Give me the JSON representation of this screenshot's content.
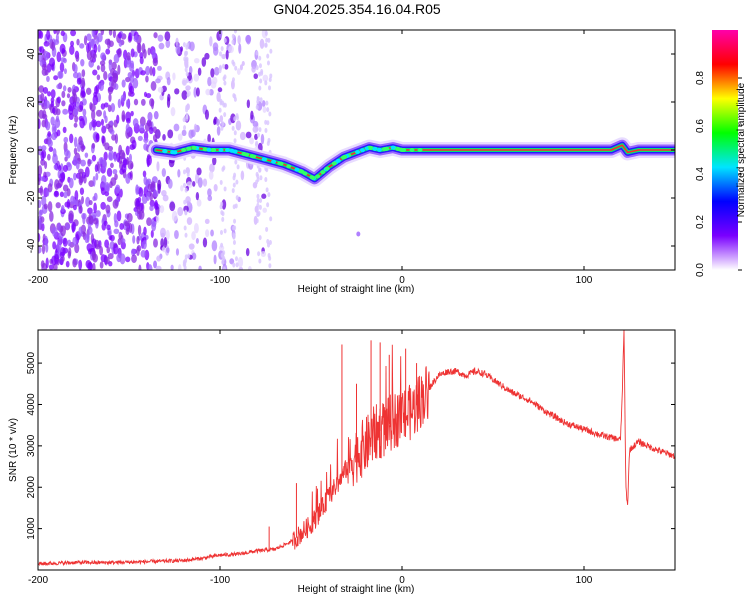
{
  "title": "GN04.2025.354.16.04.R05",
  "chart_data": [
    {
      "type": "heatmap",
      "xlabel": "Height of straight line (km)",
      "ylabel": "Frequency (Hz)",
      "xlim": [
        -200,
        150
      ],
      "ylim": [
        -50,
        50
      ],
      "xticks": [
        -200,
        -100,
        0,
        100
      ],
      "yticks": [
        -40,
        -20,
        0,
        20,
        40
      ],
      "colorbar": {
        "label": "Normalized spectral amplitude",
        "range": [
          0,
          1
        ],
        "ticks": [
          "0.0",
          "0.2",
          "0.4",
          "0.6",
          "0.8"
        ],
        "colors": [
          "#ffffff",
          "#7a00ff",
          "#0000ff",
          "#00e5ff",
          "#00ff00",
          "#ffff00",
          "#ff0000",
          "#ff00aa"
        ]
      },
      "ridge": {
        "x": [
          -135,
          -125,
          -115,
          -105,
          -95,
          -85,
          -75,
          -65,
          -55,
          -48,
          -40,
          -32,
          -25,
          -18,
          -12,
          -5,
          0,
          10,
          20,
          40,
          60,
          80,
          100,
          115,
          121,
          124,
          130,
          150
        ],
        "y": [
          0,
          -1,
          1,
          0,
          0,
          -2,
          -4,
          -6,
          -9,
          -12,
          -7,
          -3,
          -1,
          1,
          0,
          1,
          0,
          0,
          0,
          0,
          0,
          0,
          0,
          0,
          2,
          -1,
          0,
          0
        ]
      }
    },
    {
      "type": "line",
      "xlabel": "Height of straight line (km)",
      "ylabel": "SNR (10 * v/v)",
      "xlim": [
        -200,
        150
      ],
      "ylim": [
        0,
        5800
      ],
      "xticks": [
        -200,
        -100,
        0,
        100
      ],
      "yticks": [
        1000,
        2000,
        3000,
        4000,
        5000
      ],
      "color": "#ee3333",
      "x": [
        -200,
        -180,
        -160,
        -140,
        -120,
        -110,
        -100,
        -90,
        -80,
        -70,
        -60,
        -50,
        -45,
        -40,
        -35,
        -30,
        -25,
        -20,
        -15,
        -10,
        -5,
        0,
        5,
        10,
        15,
        20,
        25,
        30,
        35,
        40,
        45,
        50,
        60,
        70,
        80,
        90,
        100,
        110,
        115,
        120,
        121,
        122,
        123,
        124,
        125,
        130,
        140,
        150
      ],
      "y": [
        150,
        180,
        180,
        200,
        230,
        280,
        360,
        380,
        460,
        500,
        700,
        1100,
        1400,
        1800,
        2100,
        2500,
        2800,
        3000,
        3300,
        3400,
        3600,
        3700,
        3800,
        4100,
        4400,
        4700,
        4800,
        4800,
        4700,
        4800,
        4750,
        4600,
        4300,
        4100,
        3800,
        3550,
        3400,
        3250,
        3200,
        3150,
        4200,
        5800,
        2000,
        1550,
        2900,
        3100,
        2900,
        2750
      ],
      "spikes": [
        {
          "x": -73,
          "y": 1050
        },
        {
          "x": -58,
          "y": 2100
        },
        {
          "x": -33,
          "y": 5450
        },
        {
          "x": -25,
          "y": 4500
        },
        {
          "x": -17,
          "y": 5550
        },
        {
          "x": -12,
          "y": 5500
        },
        {
          "x": -7,
          "y": 5200
        },
        {
          "x": 2,
          "y": 5350
        },
        {
          "x": 8,
          "y": 5000
        }
      ]
    }
  ]
}
